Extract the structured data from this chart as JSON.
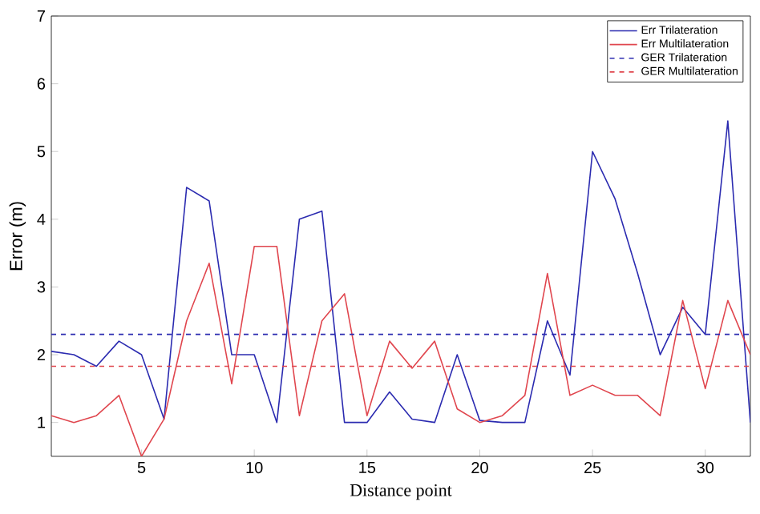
{
  "chart_data": {
    "type": "line",
    "xlabel": "Distance point",
    "ylabel": "Error (m)",
    "xlim": [
      1,
      32
    ],
    "ylim": [
      0.5,
      7
    ],
    "xticks": [
      5,
      10,
      15,
      20,
      25,
      30
    ],
    "yticks": [
      1,
      2,
      3,
      4,
      5,
      6,
      7
    ],
    "grid": false,
    "legend": "top right",
    "marker": "none",
    "x": [
      1,
      2,
      3,
      4,
      5,
      6,
      7,
      8,
      9,
      10,
      11,
      12,
      13,
      14,
      15,
      16,
      17,
      18,
      19,
      20,
      21,
      22,
      23,
      24,
      25,
      26,
      27,
      28,
      29,
      30,
      31,
      32
    ],
    "series": [
      {
        "name": "Err Trilateration",
        "color": "#2b2bb0",
        "line_style": "solid",
        "values": [
          2.05,
          2.0,
          1.83,
          2.2,
          2.0,
          1.05,
          4.47,
          4.27,
          2.0,
          2.0,
          1.0,
          4.0,
          4.12,
          1.0,
          1.0,
          1.45,
          1.05,
          1.0,
          2.0,
          1.03,
          1.0,
          1.0,
          2.5,
          1.7,
          5.0,
          4.3,
          3.2,
          2.0,
          2.7,
          2.3,
          5.45,
          1.0
        ]
      },
      {
        "name": "Err Multilateration",
        "color": "#e0464e",
        "line_style": "solid",
        "values": [
          1.1,
          1.0,
          1.1,
          1.4,
          0.5,
          1.05,
          2.5,
          3.35,
          1.57,
          3.6,
          3.6,
          1.1,
          2.5,
          2.9,
          1.1,
          2.2,
          1.8,
          2.2,
          1.2,
          1.0,
          1.1,
          1.4,
          3.2,
          1.4,
          1.55,
          1.4,
          1.4,
          1.1,
          2.8,
          1.5,
          2.8,
          2.0
        ]
      }
    ],
    "ref_lines": [
      {
        "axis": "y",
        "value": 2.3,
        "label": "GER Trilateration",
        "color": "#2b2bb0",
        "line_style": "dashed"
      },
      {
        "axis": "y",
        "value": 1.83,
        "label": "GER Multilateration",
        "color": "#e0464e",
        "line_style": "dashed"
      }
    ]
  }
}
